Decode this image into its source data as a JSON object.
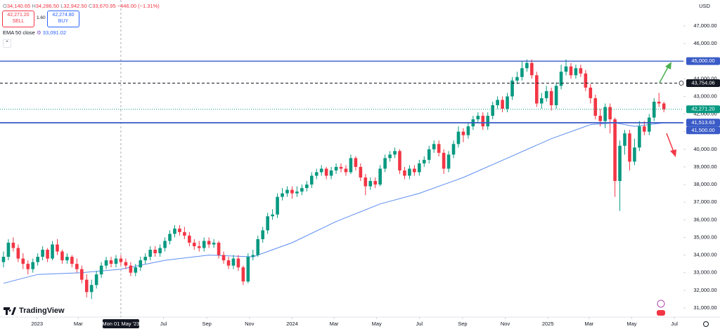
{
  "chart_data": {
    "type": "candlestick",
    "currency": "USD",
    "legend_bar": {
      "parts": [
        {
          "label": "O",
          "value": "34,140.65"
        },
        {
          "label": "H",
          "value": "34,286.50"
        },
        {
          "label": "L",
          "value": "32,942.50"
        },
        {
          "label": "C",
          "value": "33,670.95"
        }
      ],
      "change": "−446.00 (−1.31%)"
    },
    "trade": {
      "sell_price": "42,271.20",
      "sell": "SELL",
      "spread": "1.60",
      "buy_price": "42,274.80",
      "buy": "BUY"
    },
    "brand": "TradingView",
    "up_color": "#089981",
    "down_color": "#f23645",
    "xlim": [
      "2022-11-09",
      "2025-07-14"
    ],
    "ylim": [
      30480,
      48470
    ],
    "xticks": [
      {
        "value": "2023-01-01",
        "label": "2023"
      },
      {
        "value": "2023-03-01",
        "label": "Mar"
      },
      {
        "value": "2023-07-01",
        "label": "Jul"
      },
      {
        "value": "2023-09-01",
        "label": "Sep"
      },
      {
        "value": "2023-11-01",
        "label": "Nov"
      },
      {
        "value": "2024-01-01",
        "label": "2024"
      },
      {
        "value": "2024-03-01",
        "label": "Mar"
      },
      {
        "value": "2024-05-01",
        "label": "May"
      },
      {
        "value": "2024-07-01",
        "label": "Jul"
      },
      {
        "value": "2024-09-01",
        "label": "Sep"
      },
      {
        "value": "2024-11-01",
        "label": "Nov"
      },
      {
        "value": "2025-01-01",
        "label": "2025"
      },
      {
        "value": "2025-03-01",
        "label": "Mar"
      },
      {
        "value": "2025-05-01",
        "label": "May"
      },
      {
        "value": "2025-07-01",
        "label": "Jul"
      }
    ],
    "yticks": [
      {
        "value": 31000,
        "label": "31,000.00"
      },
      {
        "value": 32000,
        "label": "32,000.00"
      },
      {
        "value": 33000,
        "label": "33,000.00"
      },
      {
        "value": 34000,
        "label": "34,000.00"
      },
      {
        "value": 35000,
        "label": "35,000.00"
      },
      {
        "value": 36000,
        "label": "36,000.00"
      },
      {
        "value": 37000,
        "label": "37,000.00"
      },
      {
        "value": 38000,
        "label": "38,000.00"
      },
      {
        "value": 39000,
        "label": "39,000.00"
      },
      {
        "value": 40000,
        "label": "40,000.00"
      },
      {
        "value": 41000,
        "label": "41,000.00"
      },
      {
        "value": 42000,
        "label": "42,000.00"
      },
      {
        "value": 43000,
        "label": "43,000.00"
      },
      {
        "value": 44000,
        "label": "44,000.00"
      },
      {
        "value": 45000,
        "label": "45,000.00"
      },
      {
        "value": 46000,
        "label": "46,000.00"
      },
      {
        "value": 47000,
        "label": "47,000.00"
      }
    ],
    "crosshair": {
      "x": "2023-05-01",
      "label": "Mon 01 May '23"
    },
    "levels": [
      {
        "value": 45000,
        "label": "45,000.00",
        "color": "#3a5bc7",
        "style": "solid"
      },
      {
        "value": 43754.06,
        "label": "43,754.06",
        "color": "#131722",
        "style": "dashed"
      },
      {
        "value": 42271.2,
        "label": "42,271.20",
        "color": "#089981",
        "style": "dotted"
      },
      {
        "value": 41513.63,
        "label": "41,513.63",
        "color": "#3a5bc7",
        "style": "solid"
      },
      {
        "value": 41500,
        "label": "41,500.00",
        "color": "#3a5bc7",
        "style": "solid"
      }
    ],
    "ema": {
      "label": "EMA 50 close",
      "last": "33,091.02",
      "color": "#5b8def",
      "x": [
        "2022-11-14",
        "2023-01-02",
        "2023-03-06",
        "2023-05-01",
        "2023-07-03",
        "2023-09-04",
        "2023-11-06",
        "2024-01-01",
        "2024-03-04",
        "2024-05-06",
        "2024-07-01",
        "2024-09-02",
        "2024-11-04",
        "2025-01-06",
        "2025-03-03",
        "2025-04-07",
        "2025-05-05",
        "2025-06-16"
      ],
      "values": [
        32400,
        32900,
        33000,
        33200,
        33700,
        34000,
        33900,
        34700,
        35900,
        36900,
        37500,
        38400,
        39500,
        40600,
        41400,
        41500,
        41300,
        41500
      ]
    },
    "x": [
      "2022-11-14",
      "2022-11-21",
      "2022-11-28",
      "2022-12-05",
      "2022-12-12",
      "2022-12-19",
      "2022-12-26",
      "2023-01-02",
      "2023-01-09",
      "2023-01-16",
      "2023-01-23",
      "2023-01-30",
      "2023-02-06",
      "2023-02-13",
      "2023-02-20",
      "2023-02-27",
      "2023-03-06",
      "2023-03-13",
      "2023-03-20",
      "2023-03-27",
      "2023-04-03",
      "2023-04-10",
      "2023-04-17",
      "2023-04-24",
      "2023-05-01",
      "2023-05-08",
      "2023-05-15",
      "2023-05-22",
      "2023-05-29",
      "2023-06-05",
      "2023-06-12",
      "2023-06-19",
      "2023-06-26",
      "2023-07-03",
      "2023-07-10",
      "2023-07-17",
      "2023-07-24",
      "2023-07-31",
      "2023-08-07",
      "2023-08-14",
      "2023-08-21",
      "2023-08-28",
      "2023-09-04",
      "2023-09-11",
      "2023-09-18",
      "2023-09-25",
      "2023-10-02",
      "2023-10-09",
      "2023-10-16",
      "2023-10-23",
      "2023-10-30",
      "2023-11-06",
      "2023-11-13",
      "2023-11-20",
      "2023-11-27",
      "2023-12-04",
      "2023-12-11",
      "2023-12-18",
      "2023-12-25",
      "2024-01-01",
      "2024-01-08",
      "2024-01-15",
      "2024-01-22",
      "2024-01-29",
      "2024-02-05",
      "2024-02-12",
      "2024-02-19",
      "2024-02-26",
      "2024-03-04",
      "2024-03-11",
      "2024-03-18",
      "2024-03-25",
      "2024-04-01",
      "2024-04-08",
      "2024-04-15",
      "2024-04-22",
      "2024-04-29",
      "2024-05-06",
      "2024-05-13",
      "2024-05-20",
      "2024-05-27",
      "2024-06-03",
      "2024-06-10",
      "2024-06-17",
      "2024-06-24",
      "2024-07-01",
      "2024-07-08",
      "2024-07-15",
      "2024-07-22",
      "2024-07-29",
      "2024-08-05",
      "2024-08-12",
      "2024-08-19",
      "2024-08-26",
      "2024-09-02",
      "2024-09-09",
      "2024-09-16",
      "2024-09-23",
      "2024-09-30",
      "2024-10-07",
      "2024-10-14",
      "2024-10-21",
      "2024-10-28",
      "2024-11-04",
      "2024-11-11",
      "2024-11-18",
      "2024-11-25",
      "2024-12-02",
      "2024-12-09",
      "2024-12-16",
      "2024-12-23",
      "2024-12-30",
      "2025-01-06",
      "2025-01-13",
      "2025-01-20",
      "2025-01-27",
      "2025-02-03",
      "2025-02-10",
      "2025-02-17",
      "2025-02-24",
      "2025-03-03",
      "2025-03-10",
      "2025-03-17",
      "2025-03-24",
      "2025-03-31",
      "2025-04-07",
      "2025-04-14",
      "2025-04-21",
      "2025-04-28",
      "2025-05-05",
      "2025-05-12",
      "2025-05-19",
      "2025-05-26",
      "2025-06-02",
      "2025-06-09",
      "2025-06-16"
    ],
    "ohlc": [
      [
        33600,
        34200,
        33300,
        33900
      ],
      [
        33900,
        34900,
        33700,
        34700
      ],
      [
        34700,
        35000,
        34200,
        34400
      ],
      [
        34400,
        34600,
        33600,
        33800
      ],
      [
        33800,
        34100,
        33200,
        33500
      ],
      [
        33500,
        33700,
        32900,
        33200
      ],
      [
        33200,
        33800,
        33000,
        33600
      ],
      [
        33600,
        34100,
        33400,
        33900
      ],
      [
        33900,
        34500,
        33700,
        34300
      ],
      [
        34300,
        34400,
        33600,
        33800
      ],
      [
        33800,
        34800,
        33700,
        34600
      ],
      [
        34600,
        34900,
        34000,
        34200
      ],
      [
        34200,
        34300,
        33500,
        33700
      ],
      [
        33700,
        34100,
        33500,
        33900
      ],
      [
        33900,
        34000,
        33300,
        33500
      ],
      [
        33500,
        33800,
        33000,
        33200
      ],
      [
        33200,
        33400,
        32400,
        32600
      ],
      [
        32600,
        32900,
        31600,
        31900
      ],
      [
        31900,
        32600,
        31500,
        32300
      ],
      [
        32300,
        33100,
        32100,
        32900
      ],
      [
        32900,
        33600,
        32700,
        33400
      ],
      [
        33400,
        33900,
        33200,
        33700
      ],
      [
        33700,
        33900,
        33300,
        33500
      ],
      [
        33500,
        34000,
        33300,
        33800
      ],
      [
        33800,
        34000,
        33400,
        33600
      ],
      [
        33600,
        33800,
        33200,
        33400
      ],
      [
        33400,
        33600,
        32800,
        33000
      ],
      [
        33000,
        33500,
        32800,
        33300
      ],
      [
        33300,
        33900,
        33100,
        33700
      ],
      [
        33700,
        34100,
        33500,
        33900
      ],
      [
        33900,
        34500,
        33700,
        34300
      ],
      [
        34300,
        34500,
        33900,
        34100
      ],
      [
        34100,
        34600,
        33900,
        34400
      ],
      [
        34400,
        35000,
        34200,
        34800
      ],
      [
        34800,
        35400,
        34600,
        35200
      ],
      [
        35200,
        35700,
        35000,
        35500
      ],
      [
        35500,
        35700,
        35100,
        35300
      ],
      [
        35300,
        35600,
        34900,
        35100
      ],
      [
        35100,
        35300,
        34500,
        34700
      ],
      [
        34700,
        34900,
        34300,
        34500
      ],
      [
        34500,
        34800,
        34200,
        34400
      ],
      [
        34400,
        35000,
        34200,
        34800
      ],
      [
        34800,
        35000,
        34400,
        34600
      ],
      [
        34600,
        34900,
        34400,
        34700
      ],
      [
        34700,
        34800,
        33800,
        34000
      ],
      [
        34000,
        34200,
        33500,
        33700
      ],
      [
        33700,
        33900,
        33200,
        33400
      ],
      [
        33400,
        34000,
        33200,
        33800
      ],
      [
        33800,
        34000,
        33100,
        33300
      ],
      [
        33300,
        33400,
        32300,
        32500
      ],
      [
        32500,
        34100,
        32400,
        33900
      ],
      [
        33900,
        34300,
        33700,
        34000
      ],
      [
        34000,
        35100,
        33900,
        34900
      ],
      [
        34900,
        35600,
        34700,
        35400
      ],
      [
        35400,
        36400,
        35200,
        36200
      ],
      [
        36200,
        36600,
        36000,
        36300
      ],
      [
        36300,
        37500,
        36100,
        37300
      ],
      [
        37300,
        37800,
        37100,
        37500
      ],
      [
        37500,
        37900,
        37300,
        37700
      ],
      [
        37700,
        37900,
        37200,
        37500
      ],
      [
        37500,
        37900,
        37300,
        37600
      ],
      [
        37600,
        38000,
        37400,
        37800
      ],
      [
        37800,
        38200,
        37600,
        38000
      ],
      [
        38000,
        38700,
        37800,
        38500
      ],
      [
        38500,
        38900,
        38300,
        38700
      ],
      [
        38700,
        39100,
        38500,
        38900
      ],
      [
        38900,
        39000,
        38300,
        38500
      ],
      [
        38500,
        39000,
        38300,
        38800
      ],
      [
        38800,
        39200,
        38600,
        39000
      ],
      [
        39000,
        39200,
        38700,
        38900
      ],
      [
        38900,
        39100,
        38500,
        38700
      ],
      [
        38700,
        39700,
        38600,
        39500
      ],
      [
        39500,
        39600,
        38800,
        39000
      ],
      [
        39000,
        39200,
        38200,
        38400
      ],
      [
        38400,
        38600,
        37400,
        37900
      ],
      [
        37900,
        38400,
        37700,
        38200
      ],
      [
        38200,
        38400,
        37800,
        38000
      ],
      [
        38000,
        39100,
        37900,
        38900
      ],
      [
        38900,
        39700,
        38700,
        39500
      ],
      [
        39500,
        39900,
        39300,
        39700
      ],
      [
        39700,
        40100,
        39500,
        39900
      ],
      [
        39900,
        40000,
        38600,
        38800
      ],
      [
        38800,
        39000,
        38300,
        38500
      ],
      [
        38500,
        39100,
        38300,
        38900
      ],
      [
        38900,
        39100,
        38500,
        38700
      ],
      [
        38700,
        39400,
        38500,
        39200
      ],
      [
        39200,
        39600,
        39000,
        39400
      ],
      [
        39400,
        40200,
        39200,
        40000
      ],
      [
        40000,
        40500,
        39800,
        40300
      ],
      [
        40300,
        40500,
        39600,
        39800
      ],
      [
        39800,
        40000,
        38600,
        38900
      ],
      [
        38900,
        39900,
        38700,
        39700
      ],
      [
        39700,
        40500,
        39500,
        40300
      ],
      [
        40300,
        41300,
        40100,
        41000
      ],
      [
        41000,
        41200,
        40400,
        40800
      ],
      [
        40800,
        41500,
        40600,
        41300
      ],
      [
        41300,
        41900,
        41100,
        41700
      ],
      [
        41700,
        42100,
        41500,
        41900
      ],
      [
        41900,
        42100,
        41100,
        41300
      ],
      [
        41300,
        42100,
        41100,
        41900
      ],
      [
        41900,
        42700,
        41700,
        42500
      ],
      [
        42500,
        43000,
        42300,
        42800
      ],
      [
        42800,
        43000,
        42100,
        42300
      ],
      [
        42300,
        43200,
        42100,
        43000
      ],
      [
        43000,
        44100,
        42800,
        43900
      ],
      [
        43900,
        44400,
        43700,
        44100
      ],
      [
        44100,
        45000,
        43900,
        44600
      ],
      [
        44600,
        45100,
        44400,
        44900
      ],
      [
        44900,
        45100,
        44000,
        44200
      ],
      [
        44200,
        44400,
        42400,
        42600
      ],
      [
        42600,
        43200,
        42300,
        42900
      ],
      [
        42900,
        43600,
        42700,
        43300
      ],
      [
        43300,
        43500,
        42200,
        42500
      ],
      [
        42500,
        43800,
        42300,
        43600
      ],
      [
        43600,
        44800,
        43400,
        44400
      ],
      [
        44400,
        45100,
        44200,
        44700
      ],
      [
        44700,
        44900,
        44000,
        44200
      ],
      [
        44200,
        44800,
        44000,
        44600
      ],
      [
        44600,
        44800,
        44100,
        44300
      ],
      [
        44300,
        44500,
        43300,
        43500
      ],
      [
        43500,
        43700,
        42600,
        42900
      ],
      [
        42900,
        43100,
        41700,
        41900
      ],
      [
        41900,
        42300,
        41300,
        41600
      ],
      [
        41600,
        42600,
        41200,
        42400
      ],
      [
        42400,
        42600,
        40900,
        41700
      ],
      [
        41700,
        41800,
        37300,
        38200
      ],
      [
        38200,
        40500,
        36500,
        40200
      ],
      [
        40200,
        41100,
        39700,
        40900
      ],
      [
        40900,
        41100,
        38800,
        39300
      ],
      [
        39300,
        40600,
        39100,
        40100
      ],
      [
        40100,
        41600,
        39900,
        41300
      ],
      [
        41300,
        41600,
        40800,
        41000
      ],
      [
        41000,
        42000,
        40800,
        41800
      ],
      [
        41800,
        42900,
        41600,
        42700
      ],
      [
        42700,
        43200,
        42400,
        42600
      ],
      [
        42600,
        42700,
        42100,
        42271.2
      ]
    ]
  }
}
